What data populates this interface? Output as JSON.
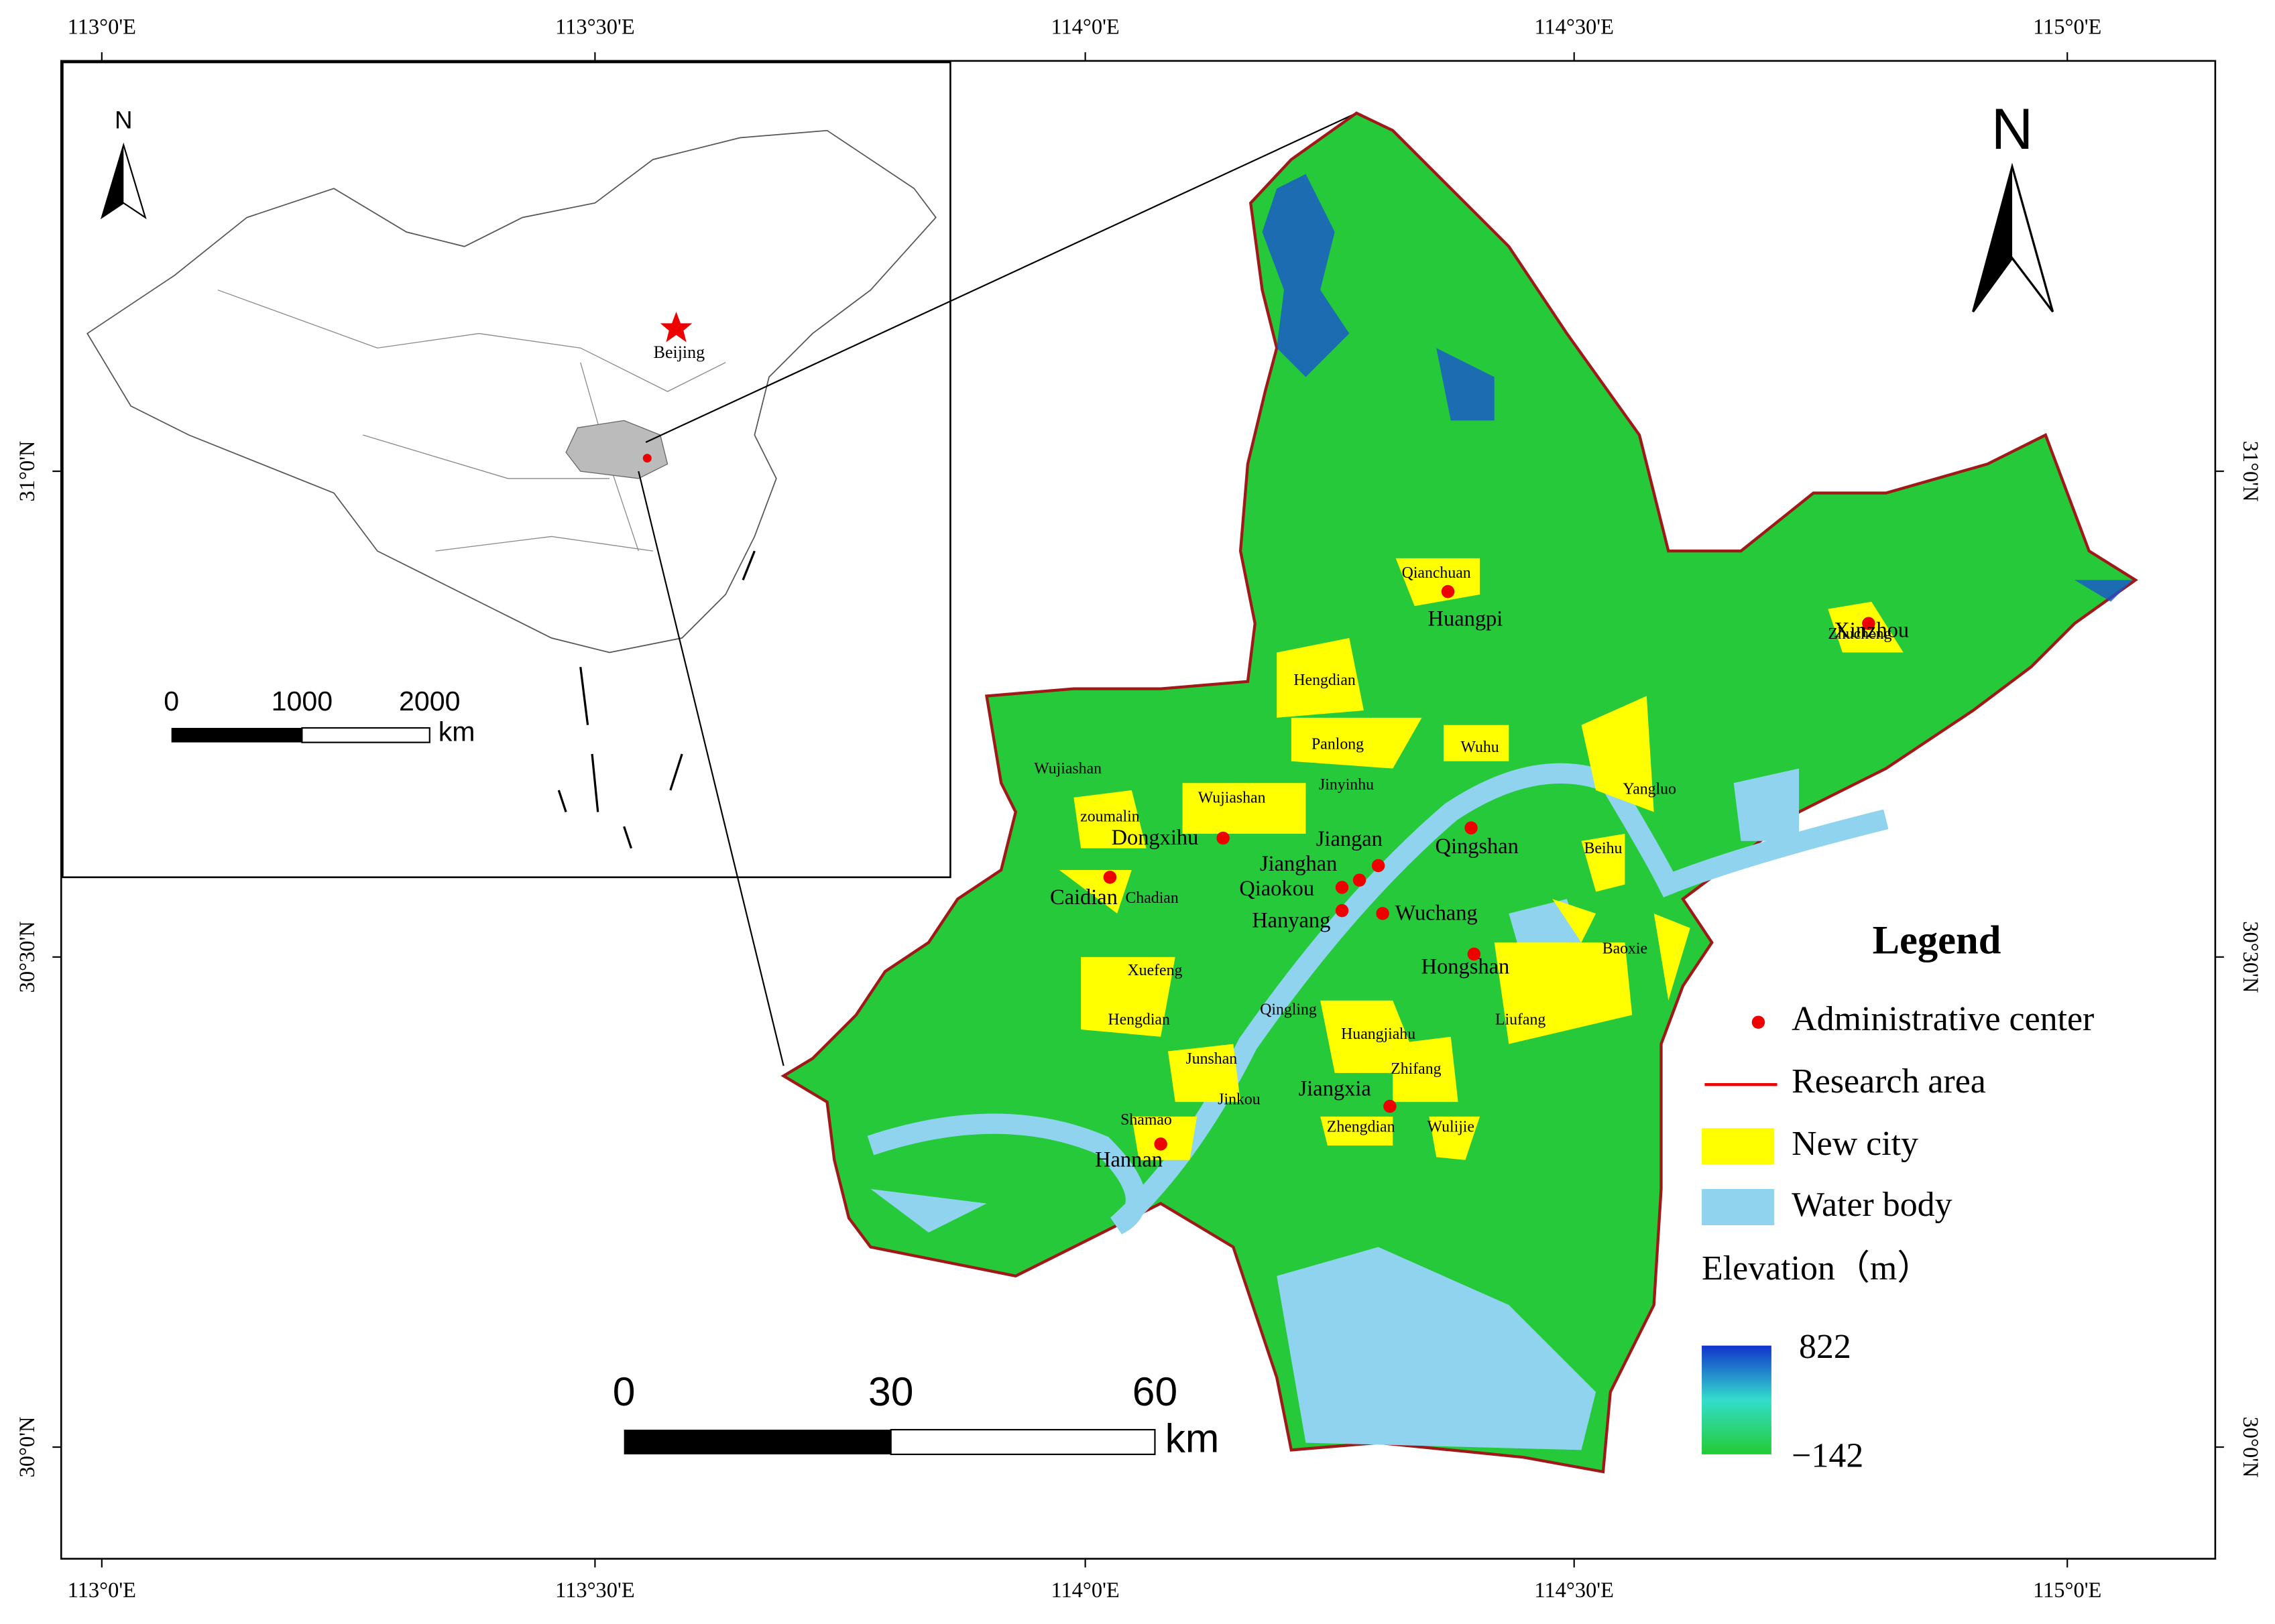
{
  "graticule": {
    "longitudes": [
      "113°0'E",
      "113°30'E",
      "114°0'E",
      "114°30'E",
      "115°0'E"
    ],
    "latitudes": [
      "31°0'N",
      "30°30'N",
      "30°0'N"
    ]
  },
  "inset": {
    "north": "N",
    "capital": "Beijing",
    "scale": [
      "0",
      "1000",
      "2000"
    ],
    "unit": "km"
  },
  "map": {
    "north": "N",
    "districts": [
      "Huangpi",
      "Xinzhou",
      "Dongxihu",
      "Jiangan",
      "Qingshan",
      "Jianghan",
      "Caidian",
      "Qiaokou",
      "Hanyang",
      "Wuchang",
      "Hongshan",
      "Jiangxia",
      "Hannan"
    ],
    "new_cities": [
      "Qianchuan",
      "Zhucheng",
      "Hengdian",
      "Panlong",
      "Wuhu",
      "Wujiashan",
      "Jinyinhu",
      "Wujiashan",
      "zoumalin",
      "Yangluo",
      "Beihu",
      "Chadian",
      "Baoxie",
      "Xuefeng",
      "Qingling",
      "Hengdian",
      "Liufang",
      "Huangjiahu",
      "Junshan",
      "Zhifang",
      "Jinkou",
      "Shamao",
      "Zhengdian",
      "Wulijie"
    ],
    "scale": [
      "0",
      "30",
      "60"
    ],
    "unit": "km"
  },
  "legend": {
    "title": "Legend",
    "items": [
      "Administrative center",
      "Research area",
      "New city",
      "Water body"
    ],
    "elevation_title": "Elevation（m）",
    "elevation_max": "822",
    "elevation_min": "−142"
  }
}
